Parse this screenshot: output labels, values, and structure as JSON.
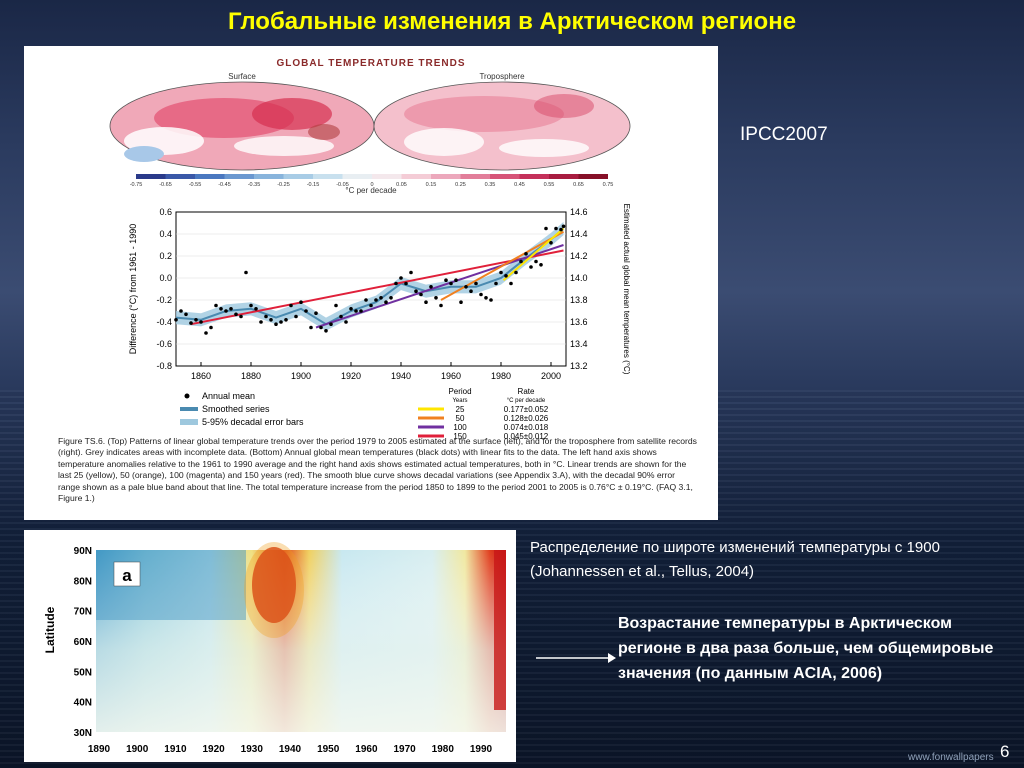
{
  "slide": {
    "title": "Глобальные изменения в Арктическом регионе",
    "source_label": "IPCC2007",
    "caption_latitude": "Распределение по широте изменений температуры с 1900 (Johannessen et al., Tellus, 2004)",
    "note": "Возрастание температуры в Арктическом регионе в два раза больше, чем общемировые значения (по данным ACIA, 2006)",
    "page_number": "6",
    "watermark": "www.fonwallpapers"
  },
  "figure_ipcc": {
    "heading": "GLOBAL TEMPERATURE TRENDS",
    "map_left_label": "Surface",
    "map_right_label": "Troposphere",
    "colorbar_ticks": [
      "-0.75",
      "-0.65",
      "-0.55",
      "-0.45",
      "-0.35",
      "-0.25",
      "-0.15",
      "-0.05",
      "0",
      "0.05",
      "0.15",
      "0.25",
      "0.35",
      "0.45",
      "0.55",
      "0.65",
      "0.75"
    ],
    "colorbar_unit": "°C per decade",
    "left_axis_label": "Difference (°C) from 1961 - 1990",
    "right_axis_label": "Estimated actual global mean temperatures (°C)",
    "legend": {
      "annual_mean": "Annual mean",
      "smoothed": "Smoothed series",
      "error_bars": "5-95% decadal error bars",
      "period_header": "Period",
      "period_unit": "Years",
      "rate_header": "Rate",
      "rate_unit": "°C per decade",
      "rows": [
        {
          "period": "25",
          "rate": "0.177±0.052",
          "color": "#ffe600"
        },
        {
          "period": "50",
          "rate": "0.128±0.026",
          "color": "#f08020"
        },
        {
          "period": "100",
          "rate": "0.074±0.018",
          "color": "#7030a0"
        },
        {
          "period": "150",
          "rate": "0.045±0.012",
          "color": "#e0203a"
        }
      ]
    },
    "caption": "Figure TS.6. (Top) Patterns of linear global temperature trends over the period 1979 to 2005 estimated at the surface (left), and for the troposphere from satellite records (right). Grey indicates areas with incomplete data. (Bottom) Annual global mean temperatures (black dots) with linear fits to the data. The left hand axis shows temperature anomalies relative to the 1961 to 1990 average and the right hand axis shows estimated actual temperatures, both in °C. Linear trends are shown for the last 25 (yellow), 50 (orange), 100 (magenta) and 150 years (red). The smooth blue curve shows decadal variations (see Appendix 3.A), with the decadal 90% error range shown as a pale blue band about that line. The total temperature increase from the period 1850 to 1899 to the period 2001 to 2005 is 0.76°C ± 0.19°C. (FAQ 3.1, Figure 1.)",
    "chart_data": {
      "type": "scatter",
      "x_ticks": [
        "1860",
        "1880",
        "1900",
        "1920",
        "1940",
        "1960",
        "1980",
        "2000"
      ],
      "xlim": [
        1850,
        2006
      ],
      "ylim": [
        -0.8,
        0.6
      ],
      "left_ticks": [
        "0.6",
        "0.4",
        "0.2",
        "0.0",
        "-0.2",
        "-0.4",
        "-0.6",
        "-0.8"
      ],
      "right_ticks": [
        "14.6",
        "14.4",
        "14.2",
        "14.0",
        "13.8",
        "13.6",
        "13.4",
        "13.2"
      ],
      "annual_mean": [
        [
          1850,
          -0.38
        ],
        [
          1852,
          -0.3
        ],
        [
          1854,
          -0.33
        ],
        [
          1856,
          -0.41
        ],
        [
          1858,
          -0.38
        ],
        [
          1860,
          -0.4
        ],
        [
          1862,
          -0.5
        ],
        [
          1864,
          -0.45
        ],
        [
          1866,
          -0.25
        ],
        [
          1868,
          -0.28
        ],
        [
          1870,
          -0.3
        ],
        [
          1872,
          -0.28
        ],
        [
          1874,
          -0.33
        ],
        [
          1876,
          -0.35
        ],
        [
          1878,
          0.05
        ],
        [
          1880,
          -0.25
        ],
        [
          1882,
          -0.28
        ],
        [
          1884,
          -0.4
        ],
        [
          1886,
          -0.35
        ],
        [
          1888,
          -0.38
        ],
        [
          1890,
          -0.42
        ],
        [
          1892,
          -0.4
        ],
        [
          1894,
          -0.38
        ],
        [
          1896,
          -0.25
        ],
        [
          1898,
          -0.35
        ],
        [
          1900,
          -0.22
        ],
        [
          1902,
          -0.3
        ],
        [
          1904,
          -0.45
        ],
        [
          1906,
          -0.32
        ],
        [
          1908,
          -0.45
        ],
        [
          1910,
          -0.48
        ],
        [
          1912,
          -0.42
        ],
        [
          1914,
          -0.25
        ],
        [
          1916,
          -0.35
        ],
        [
          1918,
          -0.4
        ],
        [
          1920,
          -0.28
        ],
        [
          1922,
          -0.3
        ],
        [
          1924,
          -0.3
        ],
        [
          1926,
          -0.2
        ],
        [
          1928,
          -0.25
        ],
        [
          1930,
          -0.2
        ],
        [
          1932,
          -0.18
        ],
        [
          1934,
          -0.22
        ],
        [
          1936,
          -0.18
        ],
        [
          1938,
          -0.05
        ],
        [
          1940,
          0.0
        ],
        [
          1942,
          -0.05
        ],
        [
          1944,
          0.05
        ],
        [
          1946,
          -0.12
        ],
        [
          1948,
          -0.15
        ],
        [
          1950,
          -0.22
        ],
        [
          1952,
          -0.08
        ],
        [
          1954,
          -0.18
        ],
        [
          1956,
          -0.25
        ],
        [
          1958,
          -0.02
        ],
        [
          1960,
          -0.05
        ],
        [
          1962,
          -0.02
        ],
        [
          1964,
          -0.22
        ],
        [
          1966,
          -0.08
        ],
        [
          1968,
          -0.12
        ],
        [
          1970,
          -0.05
        ],
        [
          1972,
          -0.15
        ],
        [
          1974,
          -0.18
        ],
        [
          1976,
          -0.2
        ],
        [
          1978,
          -0.05
        ],
        [
          1980,
          0.05
        ],
        [
          1982,
          0.02
        ],
        [
          1984,
          -0.05
        ],
        [
          1986,
          0.05
        ],
        [
          1988,
          0.15
        ],
        [
          1990,
          0.22
        ],
        [
          1992,
          0.1
        ],
        [
          1994,
          0.15
        ],
        [
          1996,
          0.12
        ],
        [
          1998,
          0.45
        ],
        [
          2000,
          0.32
        ],
        [
          2002,
          0.45
        ],
        [
          2004,
          0.44
        ],
        [
          2005,
          0.47
        ]
      ],
      "smoothed": [
        [
          1850,
          -0.36
        ],
        [
          1860,
          -0.38
        ],
        [
          1870,
          -0.3
        ],
        [
          1880,
          -0.28
        ],
        [
          1890,
          -0.36
        ],
        [
          1900,
          -0.28
        ],
        [
          1910,
          -0.42
        ],
        [
          1920,
          -0.3
        ],
        [
          1930,
          -0.22
        ],
        [
          1940,
          -0.05
        ],
        [
          1950,
          -0.12
        ],
        [
          1960,
          -0.08
        ],
        [
          1970,
          -0.08
        ],
        [
          1980,
          0.0
        ],
        [
          1990,
          0.18
        ],
        [
          2000,
          0.35
        ],
        [
          2005,
          0.45
        ]
      ],
      "trend_lines": [
        {
          "period": "150",
          "from": [
            1856,
            -0.42
          ],
          "to": [
            2005,
            0.25
          ]
        },
        {
          "period": "100",
          "from": [
            1906,
            -0.45
          ],
          "to": [
            2005,
            0.3
          ]
        },
        {
          "period": "50",
          "from": [
            1956,
            -0.2
          ],
          "to": [
            2005,
            0.42
          ]
        },
        {
          "period": "25",
          "from": [
            1981,
            -0.02
          ],
          "to": [
            2005,
            0.45
          ]
        }
      ]
    }
  },
  "figure_latitude": {
    "panel_letter": "a",
    "y_axis_label": "Latitude",
    "y_ticks": [
      "90N",
      "80N",
      "70N",
      "60N",
      "50N",
      "40N",
      "30N"
    ],
    "x_ticks": [
      "1890",
      "1900",
      "1910",
      "1920",
      "1930",
      "1940",
      "1950",
      "1960",
      "1970",
      "1980",
      "1990"
    ]
  }
}
